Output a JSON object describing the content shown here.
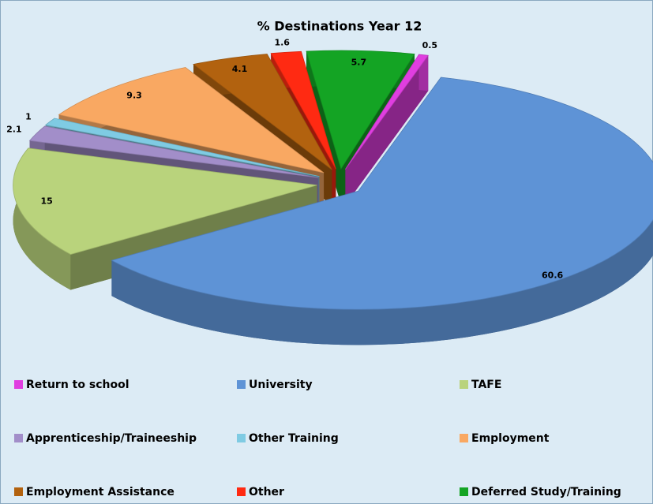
{
  "chart_data": {
    "type": "pie3d",
    "title": "%  Destinations Year 12",
    "categories": [
      "Return to school",
      "University",
      "TAFE",
      "Apprenticeship/Traineeship",
      "Other Training",
      "Employment",
      "Employment Assistance",
      "Other",
      "Deferred Study/Training"
    ],
    "values": [
      0.5,
      60.6,
      15,
      2.1,
      1,
      9.3,
      4.1,
      1.6,
      5.7
    ],
    "colors": [
      "#e03ee0",
      "#5e93d6",
      "#b9d37c",
      "#a28ec9",
      "#7fcbe3",
      "#f9a862",
      "#b2620f",
      "#ff2a12",
      "#14a424"
    ],
    "legend": "bottom"
  }
}
